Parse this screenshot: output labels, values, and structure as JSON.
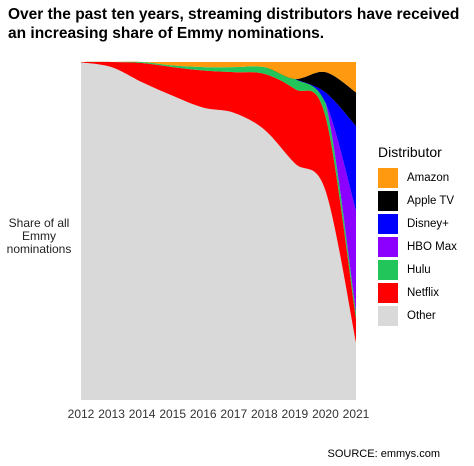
{
  "title": "Over the past ten years, streaming distributors have received an increasing share of Emmy nominations.",
  "ylabel": "Share of all Emmy nominations",
  "source": "SOURCE: emmys.com",
  "legend_title": "Distributor",
  "chart_data": {
    "type": "area",
    "stacked": true,
    "normalized": true,
    "x": [
      2012,
      2013,
      2014,
      2015,
      2016,
      2017,
      2018,
      2019,
      2020,
      2021
    ],
    "x_tick_labels": [
      "2012",
      "2013",
      "2014",
      "2015",
      "2016",
      "2017",
      "2018",
      "2019",
      "2020",
      "2021"
    ],
    "ylim": [
      0,
      1
    ],
    "y_ticks_shown": false,
    "grid": false,
    "legend_position": "right",
    "series": [
      {
        "name": "Other",
        "color": "#d9d9d9",
        "values": [
          0.999,
          0.985,
          0.94,
          0.9,
          0.865,
          0.85,
          0.8,
          0.7,
          0.62,
          0.17
        ]
      },
      {
        "name": "Netflix",
        "color": "#ff0000",
        "values": [
          0.001,
          0.015,
          0.057,
          0.085,
          0.11,
          0.12,
          0.165,
          0.22,
          0.22,
          0.07
        ]
      },
      {
        "name": "Hulu",
        "color": "#22c55a",
        "values": [
          0.0,
          0.0,
          0.003,
          0.005,
          0.01,
          0.015,
          0.02,
          0.03,
          0.04,
          0.02
        ]
      },
      {
        "name": "HBO Max",
        "color": "#8b00ff",
        "values": [
          0.0,
          0.0,
          0.0,
          0.0,
          0.0,
          0.0,
          0.0,
          0.0,
          0.0,
          0.3
        ]
      },
      {
        "name": "Disney+",
        "color": "#0000ff",
        "values": [
          0.0,
          0.0,
          0.0,
          0.0,
          0.0,
          0.0,
          0.0,
          0.0,
          0.03,
          0.25
        ]
      },
      {
        "name": "Apple TV",
        "color": "#000000",
        "values": [
          0.0,
          0.0,
          0.0,
          0.0,
          0.0,
          0.0,
          0.0,
          0.0,
          0.06,
          0.1
        ]
      },
      {
        "name": "Amazon",
        "color": "#ff9a10",
        "values": [
          0.0,
          0.0,
          0.0,
          0.01,
          0.015,
          0.015,
          0.015,
          0.05,
          0.03,
          0.09
        ]
      }
    ]
  }
}
